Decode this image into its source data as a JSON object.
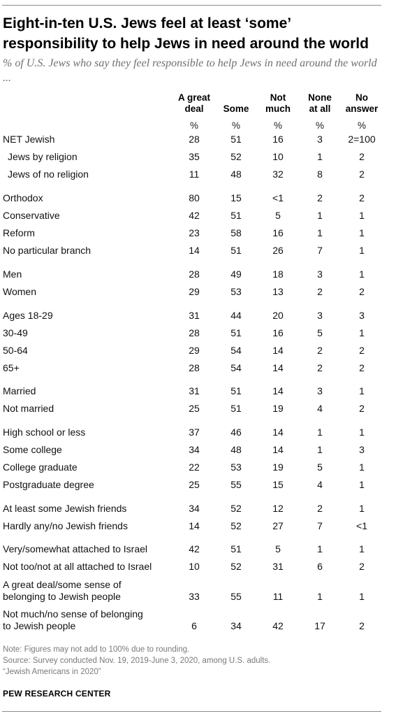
{
  "title": "Eight-in-ten U.S. Jews feel at least ‘some’ responsibility to help Jews in need around the world",
  "subtitle": "% of U.S. Jews who say they feel responsible to help Jews in need around the world ...",
  "chart_data": {
    "type": "table",
    "columns": [
      "A great\ndeal",
      "Some",
      "Not\nmuch",
      "None\nat all",
      "No\nanswer"
    ],
    "units": [
      "%",
      "%",
      "%",
      "%",
      "%"
    ],
    "rows": [
      {
        "label": "NET Jewish",
        "values": [
          "28",
          "51",
          "16",
          "3",
          "2=100"
        ]
      },
      {
        "label": "Jews by religion",
        "values": [
          "35",
          "52",
          "10",
          "1",
          "2"
        ]
      },
      {
        "label": "Jews of no religion",
        "values": [
          "11",
          "48",
          "32",
          "8",
          "2"
        ]
      },
      {
        "label": "Orthodox",
        "values": [
          "80",
          "15",
          "<1",
          "2",
          "2"
        ]
      },
      {
        "label": "Conservative",
        "values": [
          "42",
          "51",
          "5",
          "1",
          "1"
        ]
      },
      {
        "label": "Reform",
        "values": [
          "23",
          "58",
          "16",
          "1",
          "1"
        ]
      },
      {
        "label": "No particular branch",
        "values": [
          "14",
          "51",
          "26",
          "7",
          "1"
        ]
      },
      {
        "label": "Men",
        "values": [
          "28",
          "49",
          "18",
          "3",
          "1"
        ]
      },
      {
        "label": "Women",
        "values": [
          "29",
          "53",
          "13",
          "2",
          "2"
        ]
      },
      {
        "label": "Ages 18-29",
        "values": [
          "31",
          "44",
          "20",
          "3",
          "3"
        ]
      },
      {
        "label": "30-49",
        "values": [
          "28",
          "51",
          "16",
          "5",
          "1"
        ]
      },
      {
        "label": "50-64",
        "values": [
          "29",
          "54",
          "14",
          "2",
          "2"
        ]
      },
      {
        "label": "65+",
        "values": [
          "28",
          "54",
          "14",
          "2",
          "2"
        ]
      },
      {
        "label": "Married",
        "values": [
          "31",
          "51",
          "14",
          "3",
          "1"
        ]
      },
      {
        "label": "Not married",
        "values": [
          "25",
          "51",
          "19",
          "4",
          "2"
        ]
      },
      {
        "label": "High school or less",
        "values": [
          "37",
          "46",
          "14",
          "1",
          "1"
        ]
      },
      {
        "label": "Some college",
        "values": [
          "34",
          "48",
          "14",
          "1",
          "3"
        ]
      },
      {
        "label": "College graduate",
        "values": [
          "22",
          "53",
          "19",
          "5",
          "1"
        ]
      },
      {
        "label": "Postgraduate degree",
        "values": [
          "25",
          "55",
          "15",
          "4",
          "1"
        ]
      },
      {
        "label": "At least some Jewish friends",
        "values": [
          "34",
          "52",
          "12",
          "2",
          "1"
        ]
      },
      {
        "label": "Hardly any/no Jewish friends",
        "values": [
          "14",
          "52",
          "27",
          "7",
          "<1"
        ]
      },
      {
        "label": "Very/somewhat attached to Israel",
        "values": [
          "42",
          "51",
          "5",
          "1",
          "1"
        ]
      },
      {
        "label": "Not too/not at all attached to Israel",
        "values": [
          "10",
          "52",
          "31",
          "6",
          "2"
        ]
      },
      {
        "label": "A great deal/some sense of belonging to Jewish people",
        "values": [
          "33",
          "55",
          "11",
          "1",
          "1"
        ]
      },
      {
        "label": "Not much/no sense of belonging to Jewish people",
        "values": [
          "6",
          "34",
          "42",
          "17",
          "2"
        ]
      }
    ]
  },
  "notes": [
    "Note: Figures may not add to 100% due to rounding.",
    "Source: Survey conducted Nov. 19, 2019-June 3, 2020, among U.S. adults.",
    "“Jewish Americans in 2020”"
  ],
  "source_org": "PEW RESEARCH CENTER"
}
